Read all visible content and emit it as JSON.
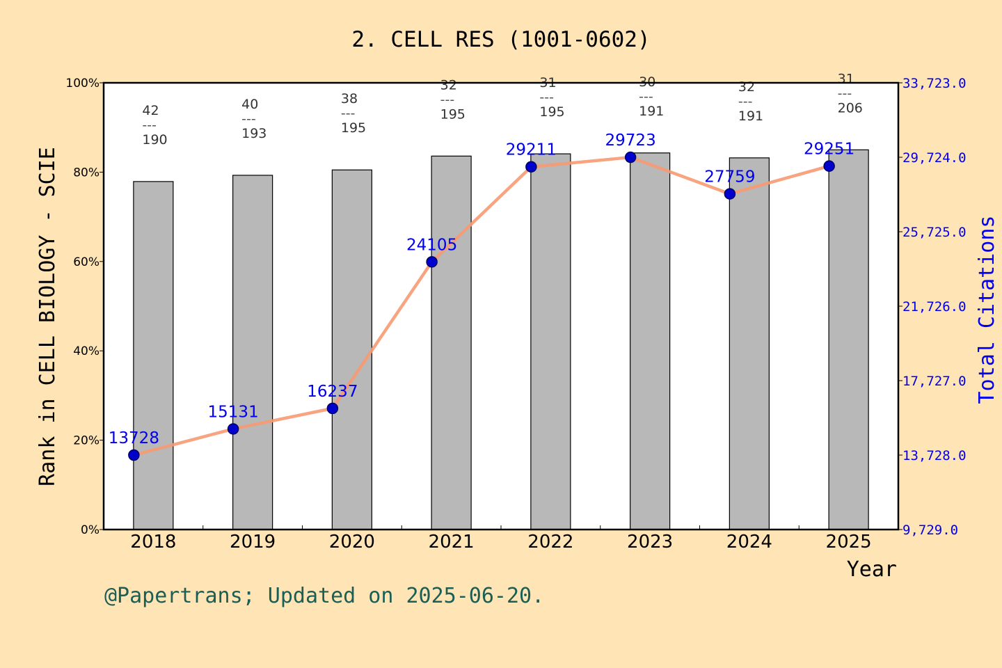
{
  "chart_data": {
    "type": "bar",
    "title": "2. CELL RES (1001-0602)",
    "xlabel": "Year",
    "ylabel": "Rank in CELL BIOLOGY - SCIE",
    "y2label": "Total Citations",
    "categories": [
      "2018",
      "2019",
      "2020",
      "2021",
      "2022",
      "2023",
      "2024",
      "2025"
    ],
    "ylim": [
      0,
      100
    ],
    "yticks": [
      "0%",
      "20%",
      "40%",
      "60%",
      "80%",
      "100%"
    ],
    "y2lim": [
      9729,
      33723
    ],
    "y2ticks": [
      "9,729.0",
      "13,728.0",
      "17,727.0",
      "21,726.0",
      "25,725.0",
      "29,724.0",
      "33,723.0"
    ],
    "series": [
      {
        "type": "bar",
        "values": [
          77.9,
          79.3,
          80.5,
          83.6,
          84.1,
          84.3,
          83.2,
          85.0
        ],
        "labels": [
          {
            "rank": "42",
            "total": "190"
          },
          {
            "rank": "40",
            "total": "193"
          },
          {
            "rank": "38",
            "total": "195"
          },
          {
            "rank": "32",
            "total": "195"
          },
          {
            "rank": "31",
            "total": "195"
          },
          {
            "rank": "30",
            "total": "191"
          },
          {
            "rank": "32",
            "total": "191"
          },
          {
            "rank": "31",
            "total": "206"
          }
        ],
        "separator": "---",
        "color": "#b8b8b8"
      },
      {
        "type": "line",
        "axis": "right",
        "values": [
          13728,
          15131,
          16237,
          24105,
          29211,
          29723,
          27759,
          29251
        ],
        "color": "#f79a72",
        "marker_color": "#0000cc",
        "label_color": "#0000ee"
      }
    ],
    "grid": false,
    "footer": "@Papertrans; Updated on 2025-06-20."
  }
}
